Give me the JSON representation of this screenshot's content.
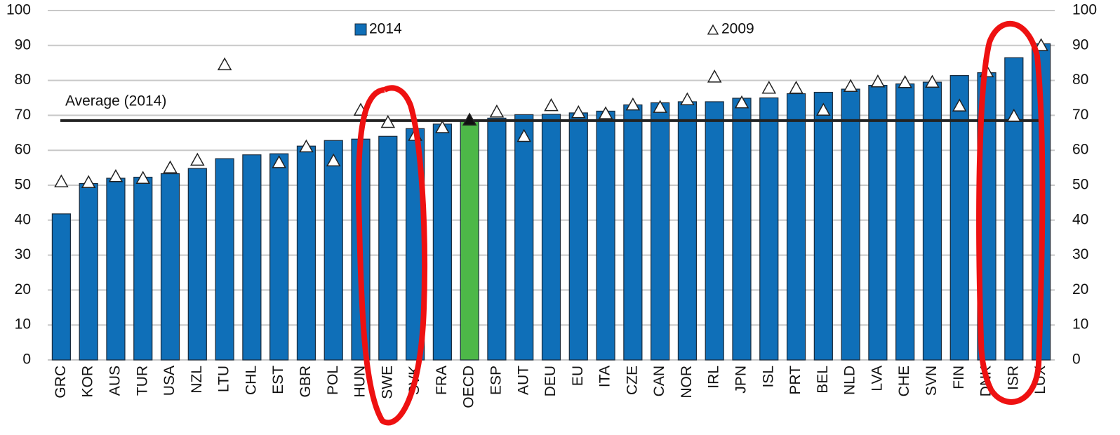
{
  "chart_data": {
    "type": "bar",
    "categories": [
      "GRC",
      "KOR",
      "AUS",
      "TUR",
      "USA",
      "NZL",
      "LTU",
      "CHL",
      "EST",
      "GBR",
      "POL",
      "HUN",
      "SWE",
      "SVK",
      "FRA",
      "OECD",
      "ESP",
      "AUT",
      "DEU",
      "EU",
      "ITA",
      "CZE",
      "CAN",
      "NOR",
      "IRL",
      "JPN",
      "ISL",
      "PRT",
      "BEL",
      "NLD",
      "LVA",
      "CHE",
      "SVN",
      "FIN",
      "DNK",
      "ISR",
      "LUX"
    ],
    "series": [
      {
        "name": "2014",
        "type": "bar",
        "color": "#0f6fb8",
        "values": [
          41.8,
          50.5,
          52,
          52.3,
          53.3,
          54.8,
          57.6,
          58.7,
          59,
          61.2,
          62.8,
          63.2,
          64,
          66.2,
          67.5,
          68.5,
          69.2,
          70.2,
          70.3,
          70.7,
          71.2,
          73,
          73.6,
          73.9,
          73.9,
          74.9,
          75,
          76.2,
          76.6,
          77.5,
          78.6,
          79,
          79.5,
          81.4,
          82.2,
          86.5,
          90.5
        ]
      },
      {
        "name": "2009",
        "type": "marker",
        "color": "#ffffff",
        "filled_categories": [
          "OECD"
        ],
        "filled_color": "#111111",
        "values": [
          51,
          50.8,
          52.5,
          52,
          55,
          57.2,
          84.5,
          null,
          56.5,
          61,
          57,
          71.5,
          68,
          64.3,
          66.5,
          68.7,
          71,
          64,
          72.8,
          70.8,
          70.5,
          73,
          72.3,
          74.5,
          81,
          73.6,
          77.8,
          77.8,
          71.5,
          78.3,
          79.6,
          79.4,
          79.5,
          72.7,
          82.5,
          69.8,
          90
        ]
      }
    ],
    "highlight": {
      "categories": [
        "OECD"
      ],
      "color": "#4db848"
    },
    "reference_lines": [
      {
        "label": "Average (2014)",
        "value": 68.5
      }
    ],
    "ylim": [
      0,
      100
    ],
    "yticks": [
      0,
      10,
      20,
      30,
      40,
      50,
      60,
      70,
      80,
      90,
      100
    ],
    "y2lim": [
      0,
      100
    ],
    "y2ticks": [
      0,
      10,
      20,
      30,
      40,
      50,
      60,
      70,
      80,
      90,
      100
    ],
    "grid": true
  }
}
